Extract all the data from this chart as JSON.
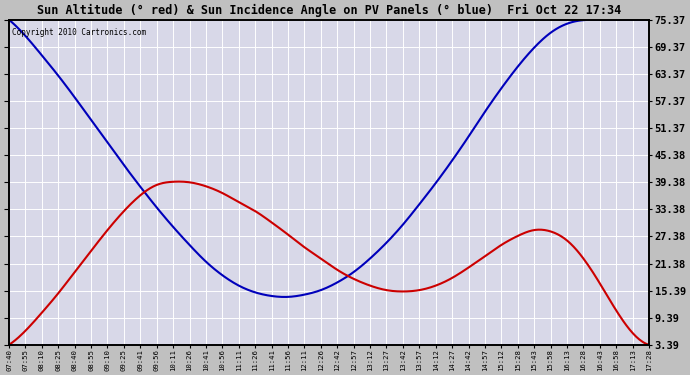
{
  "title": "Sun Altitude (° red) & Sun Incidence Angle on PV Panels (° blue)  Fri Oct 22 17:34",
  "copyright": "Copyright 2010 Cartronics.com",
  "ylabel_right_ticks": [
    3.39,
    9.39,
    15.39,
    21.38,
    27.38,
    33.38,
    39.38,
    45.38,
    51.37,
    57.37,
    63.37,
    69.37,
    75.37
  ],
  "ylim": [
    3.39,
    75.37
  ],
  "plot_background": "#d8d8e8",
  "grid_color": "#ffffff",
  "blue_color": "#0000bb",
  "red_color": "#cc0000",
  "xtick_labels": [
    "07:40",
    "07:55",
    "08:10",
    "08:25",
    "08:40",
    "08:55",
    "09:10",
    "09:25",
    "09:41",
    "09:56",
    "10:11",
    "10:26",
    "10:41",
    "10:56",
    "11:11",
    "11:26",
    "11:41",
    "11:56",
    "12:11",
    "12:26",
    "12:42",
    "12:57",
    "13:12",
    "13:27",
    "13:42",
    "13:57",
    "14:12",
    "14:27",
    "14:42",
    "14:57",
    "15:12",
    "15:28",
    "15:43",
    "15:58",
    "16:13",
    "16:28",
    "16:43",
    "16:58",
    "17:13",
    "17:28"
  ],
  "blue_values": [
    75.37,
    71.8,
    67.5,
    63.0,
    58.2,
    53.2,
    48.2,
    43.2,
    38.4,
    33.8,
    29.5,
    25.5,
    21.8,
    18.8,
    16.5,
    15.0,
    14.2,
    14.0,
    14.5,
    15.5,
    17.2,
    19.5,
    22.5,
    26.0,
    30.0,
    34.5,
    39.2,
    44.2,
    49.5,
    55.0,
    60.2,
    65.0,
    69.2,
    72.5,
    74.5,
    75.3,
    75.37,
    75.37,
    75.37,
    75.37
  ],
  "red_values": [
    3.39,
    6.5,
    10.5,
    14.8,
    19.5,
    24.2,
    28.8,
    33.0,
    36.5,
    38.8,
    39.5,
    39.38,
    38.5,
    37.0,
    35.0,
    33.0,
    30.5,
    27.8,
    25.0,
    22.5,
    20.0,
    18.0,
    16.5,
    15.5,
    15.2,
    15.5,
    16.5,
    18.2,
    20.5,
    23.0,
    25.5,
    27.5,
    28.8,
    28.5,
    26.5,
    22.5,
    17.0,
    11.0,
    6.0,
    3.39
  ]
}
